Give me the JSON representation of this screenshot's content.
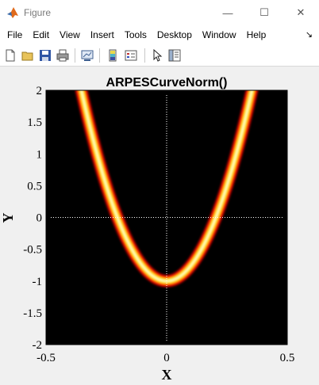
{
  "window": {
    "title": "Figure",
    "controls": {
      "minimize": "—",
      "maximize": "☐",
      "close": "✕"
    }
  },
  "menu": {
    "items": [
      "File",
      "Edit",
      "View",
      "Insert",
      "Tools",
      "Desktop",
      "Window",
      "Help"
    ],
    "overflow": "↘"
  },
  "toolbar": {
    "buttons": [
      "new-figure-icon",
      "open-file-icon",
      "save-icon",
      "print-icon",
      "link-plot-icon",
      "colorbar-icon",
      "legend-icon",
      "pointer-icon",
      "property-editor-icon"
    ]
  },
  "chart_data": {
    "type": "heatmap",
    "title": "ARPESCurveNorm()",
    "xlabel": "X",
    "ylabel": "Y",
    "xlim": [
      -0.5,
      0.5
    ],
    "ylim": [
      -2,
      2
    ],
    "xticks": [
      -0.5,
      0,
      0.5
    ],
    "xtick_labels": [
      "-0.5",
      "0",
      "0.5"
    ],
    "yticks": [
      -2,
      -1.5,
      -1,
      -0.5,
      0,
      0.5,
      1,
      1.5,
      2
    ],
    "ytick_labels": [
      "-2",
      "-1.5",
      "-1",
      "-0.5",
      "0",
      "0.5",
      "1",
      "1.5",
      "2"
    ],
    "curve": {
      "expression": "y = 24*x^2 - 1",
      "vertex": [
        0,
        -1
      ],
      "crosses_y0_at": [
        -0.204,
        0.204
      ]
    },
    "colormap": "hot",
    "colormap_colors": [
      "#000000",
      "#9a0000",
      "#ff2a00",
      "#ff9a00",
      "#ffe040",
      "#ffffd0"
    ],
    "reference_lines": [
      {
        "axis": "x",
        "value": 0,
        "style": "dotted",
        "color": "#ffffff"
      },
      {
        "axis": "y",
        "value": 0,
        "style": "dotted",
        "color": "#ffffff"
      }
    ],
    "grid": false,
    "legend": "none"
  }
}
